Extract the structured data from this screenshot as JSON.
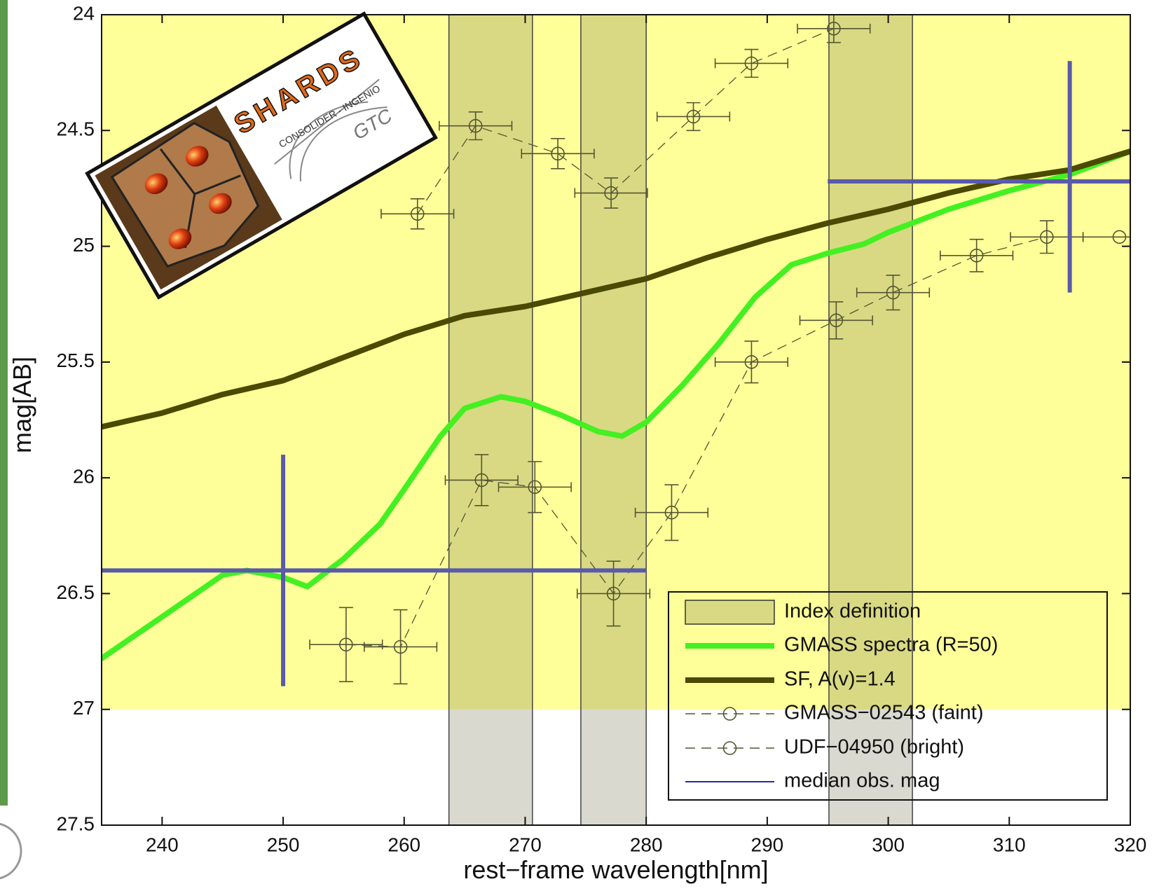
{
  "chart_data": {
    "type": "line",
    "x_label": "rest−frame wavelength[nm]",
    "y_label": "mag[AB]",
    "xlim": [
      235,
      320
    ],
    "ylim": [
      24,
      27.5
    ],
    "y_inverted": true,
    "xticks": [
      240,
      250,
      260,
      270,
      280,
      290,
      300,
      310,
      320
    ],
    "yticks": [
      24,
      24.5,
      25,
      25.5,
      26,
      26.5,
      27,
      27.5
    ],
    "highlight_ylim": [
      24,
      27
    ],
    "highlight_color": "#ffff99",
    "index_name": "Index definition",
    "index_bands": [
      [
        263.7,
        270.6
      ],
      [
        274.6,
        280
      ],
      [
        295.1,
        302
      ]
    ],
    "series": [
      {
        "name": "GMASS spectra (R=50)",
        "color": "#44f022",
        "x": [
          235,
          240,
          245,
          247,
          250,
          252,
          255,
          258,
          260,
          263,
          265,
          268,
          270,
          273,
          276,
          278,
          280,
          283,
          286,
          289,
          292,
          295,
          298,
          300,
          305,
          310,
          315,
          320
        ],
        "values": [
          26.78,
          26.6,
          26.42,
          26.4,
          26.43,
          26.47,
          26.35,
          26.2,
          26.05,
          25.82,
          25.7,
          25.65,
          25.67,
          25.73,
          25.8,
          25.82,
          25.76,
          25.6,
          25.42,
          25.22,
          25.08,
          25.03,
          24.99,
          24.94,
          24.84,
          24.76,
          24.69,
          24.59
        ]
      },
      {
        "name": "SF, A(v)=1.4",
        "color": "#4a4a00",
        "x": [
          235,
          240,
          245,
          250,
          255,
          260,
          265,
          270,
          275,
          280,
          285,
          290,
          295,
          300,
          305,
          310,
          315,
          320
        ],
        "values": [
          25.78,
          25.72,
          25.64,
          25.58,
          25.48,
          25.38,
          25.3,
          25.26,
          25.2,
          25.14,
          25.05,
          24.97,
          24.9,
          24.84,
          24.77,
          24.71,
          24.67,
          24.59
        ]
      }
    ],
    "point_series": [
      {
        "name": "GMASS−02543 (faint)",
        "color": "#555533",
        "x": [
          255.2,
          259.7,
          266.4,
          270.8,
          277.3,
          282.1,
          288.7,
          295.7,
          300.4,
          307.3,
          313.1,
          319.1
        ],
        "values": [
          26.72,
          26.73,
          26.01,
          26.04,
          26.5,
          26.15,
          25.5,
          25.32,
          25.2,
          25.04,
          24.96,
          24.96
        ],
        "xerr": [
          3,
          3,
          3,
          3,
          3,
          3,
          3,
          3,
          3,
          3,
          3,
          3
        ],
        "yerr": [
          0.16,
          0.16,
          0.11,
          0.11,
          0.14,
          0.12,
          0.09,
          0.08,
          0.075,
          0.07,
          0.07,
          0
        ]
      },
      {
        "name": "UDF−04950 (bright)",
        "color": "#555533",
        "x": [
          261.1,
          265.9,
          272.7,
          277.1,
          283.9,
          288.7,
          295.5
        ],
        "values": [
          24.86,
          24.48,
          24.6,
          24.77,
          24.44,
          24.21,
          24.06
        ],
        "xerr": [
          3,
          3,
          3,
          3,
          3,
          3,
          3
        ],
        "yerr": [
          0.065,
          0.06,
          0.065,
          0.065,
          0.06,
          0.06,
          0.06
        ]
      }
    ],
    "median_obs": {
      "name": "median obs. mag",
      "color": "#5a5aaa",
      "crosses": [
        {
          "x": 250,
          "y": 26.4,
          "xrange": [
            235,
            280
          ],
          "yrange": [
            25.9,
            26.9
          ]
        },
        {
          "x": 315,
          "y": 24.72,
          "xrange": [
            295,
            320
          ],
          "yrange": [
            24.2,
            25.2
          ]
        }
      ]
    },
    "legend": "lower right",
    "logo": {
      "title": "SHARDS",
      "subtitle": "CONSOLIDER - INGENIO",
      "mark": "GTC"
    }
  }
}
